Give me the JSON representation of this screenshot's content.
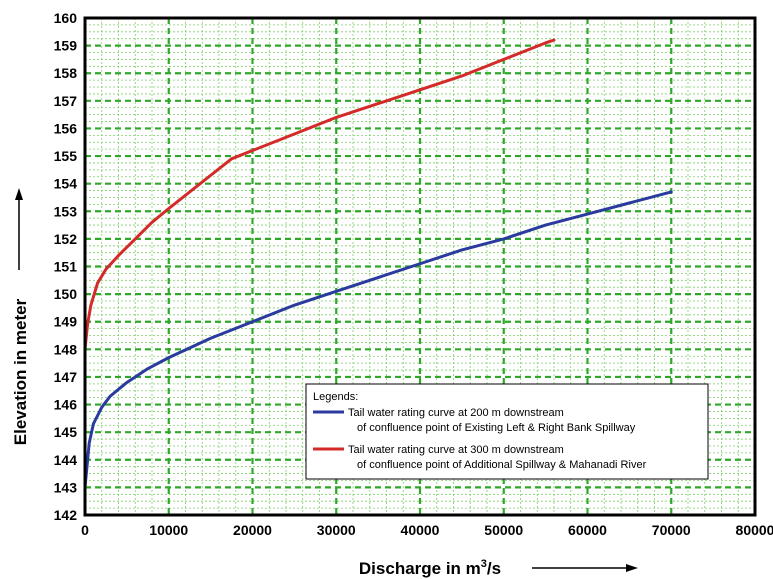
{
  "chart_data": {
    "type": "line",
    "xlabel": "Discharge in m³/s",
    "ylabel": "Elevation in meter",
    "xlim": [
      0,
      80000
    ],
    "ylim": [
      142,
      160
    ],
    "x_ticks": [
      0,
      10000,
      20000,
      30000,
      40000,
      50000,
      60000,
      70000,
      80000
    ],
    "y_ticks": [
      142,
      143,
      144,
      145,
      146,
      147,
      148,
      149,
      150,
      151,
      152,
      153,
      154,
      155,
      156,
      157,
      158,
      159,
      160
    ],
    "grid": true,
    "legend_title": "Legends:",
    "legend_placement": "bottom-right",
    "series": [
      {
        "name": "Tail water rating curve at 200 m downstream",
        "name_line2": "of confluence point of Existing Left & Right Bank Spillway",
        "color": "#2b3a9e",
        "x": [
          0,
          500,
          1000,
          2000,
          3000,
          5000,
          7500,
          10000,
          15000,
          20000,
          25000,
          30000,
          35000,
          40000,
          45000,
          50000,
          55000,
          60000,
          65000,
          70000
        ],
        "y": [
          143.0,
          144.6,
          145.3,
          145.9,
          146.3,
          146.8,
          147.3,
          147.7,
          148.4,
          149.0,
          149.6,
          150.1,
          150.6,
          151.1,
          151.6,
          152.0,
          152.5,
          152.9,
          153.3,
          153.7
        ]
      },
      {
        "name": "Tail water rating curve at 300 m downstream",
        "name_line2": "of confluence point of Additional Spillway & Mahanadi River",
        "color": "#d42a2a",
        "x": [
          0,
          300,
          700,
          1500,
          2500,
          4000,
          6000,
          8000,
          10000,
          12500,
          15000,
          17500,
          20000,
          25000,
          30000,
          35000,
          40000,
          45000,
          50000,
          55000,
          56000
        ],
        "y": [
          148.0,
          148.9,
          149.6,
          150.4,
          150.9,
          151.4,
          152.0,
          152.6,
          153.1,
          153.7,
          154.3,
          154.9,
          155.2,
          155.8,
          156.4,
          156.9,
          157.4,
          157.9,
          158.5,
          159.1,
          159.2
        ]
      }
    ]
  }
}
